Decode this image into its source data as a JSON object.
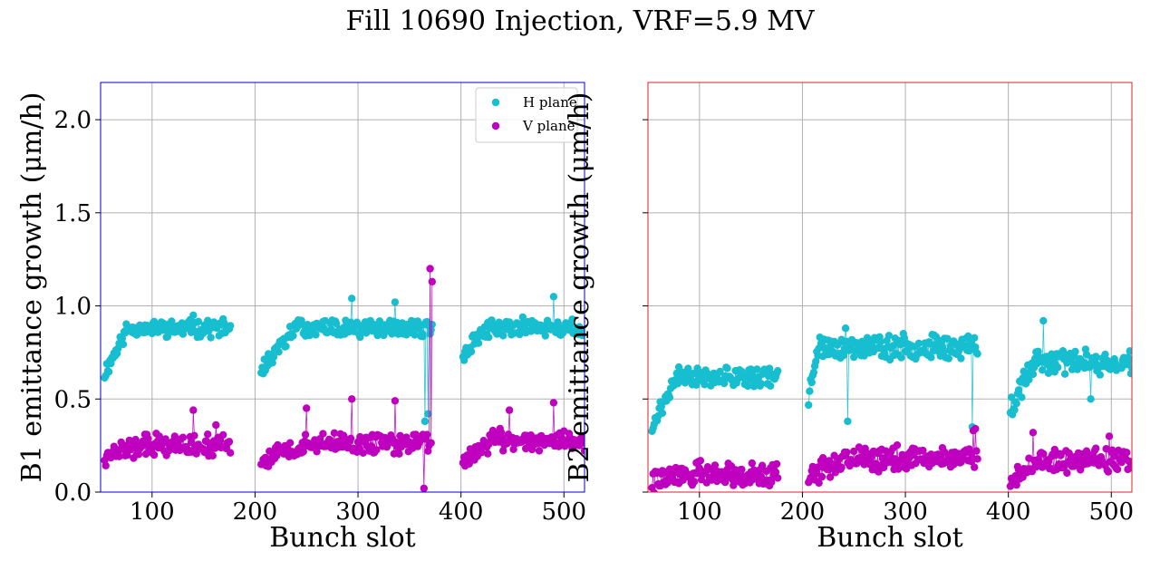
{
  "title": "Fill 10690 Injection, VRF=5.9 MV",
  "colors": {
    "h_plane": "#17becf",
    "v_plane": "#bf00bf",
    "b1_frame": "#0000cc",
    "b2_frame": "#d62728"
  },
  "legend": {
    "h_label": "H plane",
    "v_label": "V plane",
    "placement": "top-right"
  },
  "chart_data": [
    {
      "type": "scatter",
      "xlabel": "Bunch slot",
      "ylabel": "B1 emittance growth (μm/h)",
      "xlim": [
        50,
        520
      ],
      "ylim": [
        0.0,
        2.2
      ],
      "xticks": [
        100,
        200,
        300,
        400,
        500
      ],
      "yticks": [
        0.0,
        0.5,
        1.0,
        1.5,
        2.0
      ],
      "ytick_labels": [
        "0.0",
        "0.5",
        "1.0",
        "1.5",
        "2.0"
      ],
      "grid": true,
      "legend_shown": true,
      "trains": [
        {
          "plane": "H",
          "start": 54,
          "end": 176,
          "base": 0.64,
          "plateau": 0.88,
          "rise": 0.18,
          "noise": 0.035,
          "seed": 11,
          "spikes": [
            [
              140,
              0.95
            ]
          ]
        },
        {
          "plane": "V",
          "start": 54,
          "end": 176,
          "base": 0.2,
          "plateau": 0.25,
          "rise": 0.3,
          "noise": 0.045,
          "seed": 12,
          "spikes": [
            [
              140,
              0.44
            ],
            [
              162,
              0.36
            ]
          ]
        },
        {
          "plane": "H",
          "start": 206,
          "end": 372,
          "base": 0.66,
          "plateau": 0.88,
          "rise": 0.2,
          "noise": 0.035,
          "seed": 13,
          "spikes": [
            [
              294,
              1.04
            ],
            [
              336,
              1.02
            ],
            [
              365,
              0.38
            ],
            [
              368,
              0.42
            ]
          ]
        },
        {
          "plane": "V",
          "start": 206,
          "end": 372,
          "base": 0.17,
          "plateau": 0.26,
          "rise": 0.25,
          "noise": 0.045,
          "seed": 14,
          "spikes": [
            [
              250,
              0.45
            ],
            [
              294,
              0.5
            ],
            [
              336,
              0.49
            ],
            [
              370,
              1.2
            ],
            [
              372,
              1.13
            ],
            [
              364,
              0.02
            ]
          ]
        },
        {
          "plane": "H",
          "start": 402,
          "end": 520,
          "base": 0.74,
          "plateau": 0.88,
          "rise": 0.2,
          "noise": 0.035,
          "seed": 15,
          "spikes": [
            [
              490,
              1.05
            ],
            [
              460,
              0.94
            ]
          ]
        },
        {
          "plane": "V",
          "start": 402,
          "end": 520,
          "base": 0.17,
          "plateau": 0.28,
          "rise": 0.25,
          "noise": 0.045,
          "seed": 16,
          "spikes": [
            [
              447,
              0.44
            ],
            [
              490,
              0.48
            ]
          ]
        }
      ]
    },
    {
      "type": "scatter",
      "xlabel": "Bunch slot",
      "ylabel": "B2 emittance growth (μm/h)",
      "xlim": [
        50,
        520
      ],
      "ylim": [
        0.0,
        2.2
      ],
      "xticks": [
        100,
        200,
        300,
        400,
        500
      ],
      "yticks": [
        0.0,
        0.5,
        1.0,
        1.5,
        2.0
      ],
      "ytick_labels": [],
      "grid": true,
      "legend_shown": false,
      "trains": [
        {
          "plane": "H",
          "start": 54,
          "end": 176,
          "base": 0.36,
          "plateau": 0.62,
          "rise": 0.2,
          "noise": 0.04,
          "seed": 21,
          "spikes": []
        },
        {
          "plane": "V",
          "start": 54,
          "end": 176,
          "base": 0.06,
          "plateau": 0.1,
          "rise": 0.3,
          "noise": 0.05,
          "seed": 22,
          "spikes": []
        },
        {
          "plane": "H",
          "start": 206,
          "end": 370,
          "base": 0.5,
          "plateau": 0.78,
          "rise": 0.05,
          "noise": 0.05,
          "seed": 23,
          "spikes": [
            [
              242,
              0.88
            ],
            [
              244,
              0.38
            ],
            [
              365,
              0.35
            ]
          ]
        },
        {
          "plane": "V",
          "start": 206,
          "end": 370,
          "base": 0.08,
          "plateau": 0.18,
          "rise": 0.2,
          "noise": 0.05,
          "seed": 24,
          "spikes": [
            [
              366,
              0.33
            ],
            [
              368,
              0.34
            ]
          ]
        },
        {
          "plane": "H",
          "start": 402,
          "end": 520,
          "base": 0.45,
          "plateau": 0.7,
          "rise": 0.2,
          "noise": 0.05,
          "seed": 25,
          "spikes": [
            [
              434,
              0.92
            ],
            [
              480,
              0.5
            ]
          ]
        },
        {
          "plane": "V",
          "start": 402,
          "end": 520,
          "base": 0.05,
          "plateau": 0.17,
          "rise": 0.2,
          "noise": 0.05,
          "seed": 26,
          "spikes": [
            [
              424,
              0.32
            ],
            [
              498,
              0.3
            ]
          ]
        }
      ]
    }
  ]
}
